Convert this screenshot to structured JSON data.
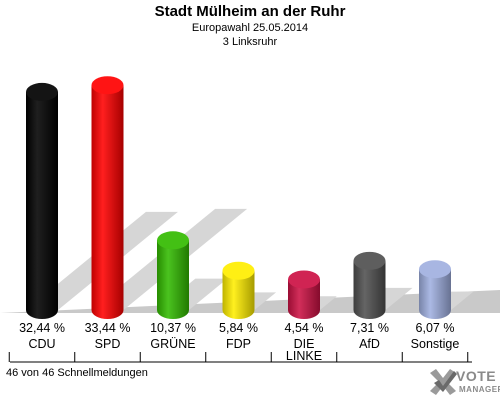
{
  "header": {
    "title": "Stadt Mülheim an der Ruhr",
    "subtitle": "Europawahl 25.05.2014",
    "district": "3 Linksruhr"
  },
  "footer": {
    "status": "46 von 46 Schnellmeldungen"
  },
  "logo": {
    "line1": "VOTE",
    "line2": "MANAGER"
  },
  "chart_data": {
    "type": "bar",
    "title": "Stadt Mülheim an der Ruhr",
    "subtitle": "Europawahl 25.05.2014",
    "xlabel": "",
    "ylabel": "",
    "ylim": [
      0,
      36
    ],
    "grid": false,
    "legend": "none",
    "categories": [
      "CDU",
      "SPD",
      "GRÜNE",
      "FDP",
      "DIE LINKE",
      "AfD",
      "Sonstige"
    ],
    "values": [
      32.44,
      33.44,
      10.37,
      5.84,
      4.54,
      7.31,
      6.07
    ],
    "value_labels": [
      "32,44 %",
      "33,44 %",
      "10,37 %",
      "5,84 %",
      "4,54 %",
      "7,31 %",
      "6,07 %"
    ],
    "category_labels": [
      [
        "CDU"
      ],
      [
        "SPD"
      ],
      [
        "GRÜNE"
      ],
      [
        "FDP"
      ],
      [
        "DIE",
        "LINKE"
      ],
      [
        "AfD"
      ],
      [
        "Sonstige"
      ]
    ],
    "colors": [
      "#000000",
      "#ff0000",
      "#33bb00",
      "#ffee00",
      "#cc1144",
      "#505050",
      "#a0b0e0"
    ]
  }
}
